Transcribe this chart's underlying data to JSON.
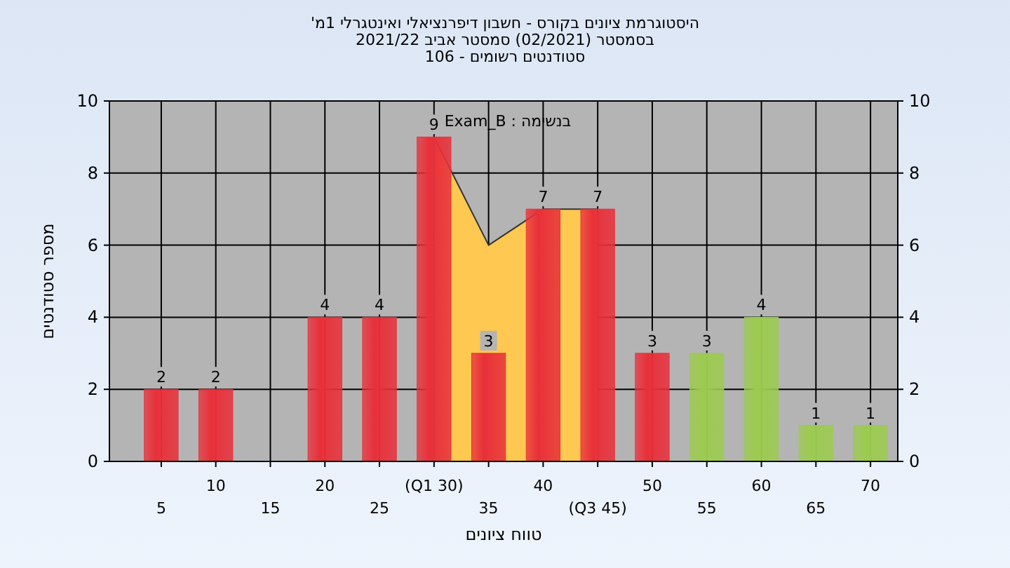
{
  "chart_data": {
    "type": "bar",
    "title": "היסטוגרמת ציונים בקורס - חשבון דיפרנציאלי ואינטגרלי 1מ'",
    "subtitle": "בסמסטר (02/2021) סמסטר אביב 2021/22\nסטודנטים רשומים - 106",
    "xlabel": "טווח ציונים",
    "ylabel": "מספר סטודנטים",
    "annotations": [
      "בנשימה : Exam_B"
    ],
    "categories": [
      "5",
      "10",
      "15",
      "20",
      "25",
      "(Q1 30)",
      "35",
      "40",
      "(Q3 45)",
      "50",
      "55",
      "60",
      "65",
      "70"
    ],
    "series": [
      {
        "type": "area",
        "color": "#ffc850",
        "values": [
          null,
          null,
          null,
          null,
          null,
          9,
          6,
          7,
          7,
          null,
          null,
          null,
          null,
          null
        ]
      },
      {
        "values": [
          2,
          2,
          null,
          4,
          4,
          9,
          3,
          7,
          7,
          3,
          3,
          4,
          1,
          1
        ],
        "colors": [
          "#e8303a",
          "#e8303a",
          null,
          "#e8303a",
          "#e8303a",
          "#e8303a",
          "#e8303a",
          "#e8303a",
          "#e8303a",
          "#e8303a",
          "#9ccb50",
          "#9ccb50",
          "#9ccb50",
          "#9ccb50"
        ],
        "value_labels": [
          "2",
          "2",
          null,
          "4",
          "4",
          "9",
          "3",
          "7",
          "7",
          "3",
          "3",
          "4",
          "1",
          "1"
        ]
      }
    ],
    "ylim": [
      0,
      10
    ],
    "yticks": [
      0,
      2,
      4,
      6,
      8,
      10
    ],
    "y2lim": [
      0,
      10
    ],
    "y2ticks": [
      0,
      2,
      4,
      6,
      8,
      10
    ],
    "grid": true
  }
}
